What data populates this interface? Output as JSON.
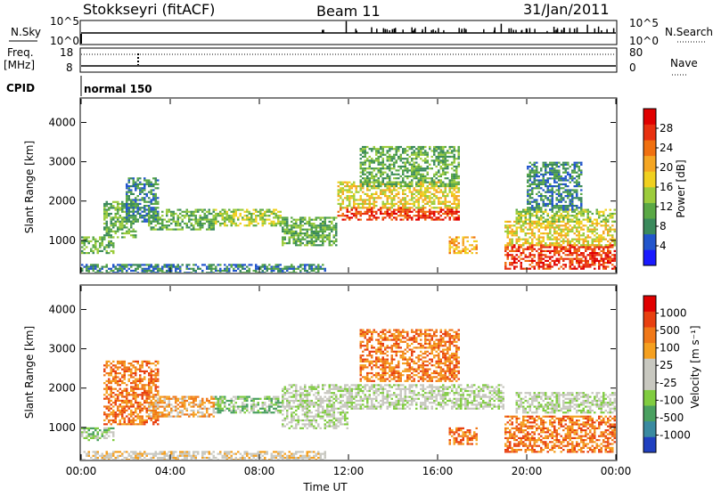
{
  "header": {
    "station": "Stokkseyri (fitACF)",
    "beam": "Beam 11",
    "date": "31/Jan/2011"
  },
  "status_panels": {
    "nsky_label": "N.Sky",
    "nsearch_label": "N.Search",
    "freq_label": "Freq.",
    "freq_unit": "[MHz]",
    "nave_label": "Nave",
    "cpid_label": "CPID",
    "cpid_value": "normal 150",
    "noise_ticks": [
      "10^5",
      "10^0"
    ],
    "freq_ticks": [
      "18",
      "8"
    ],
    "nave_ticks": [
      "80",
      "0"
    ]
  },
  "chart_data": [
    {
      "type": "heatmap",
      "name": "power",
      "ylabel": "Slant Range [km]",
      "xlabel": "Time UT",
      "x_ticks": [
        "00:00",
        "04:00",
        "08:00",
        "12:00",
        "16:00",
        "20:00",
        "00:00"
      ],
      "x_range_hours": [
        0,
        24
      ],
      "y_ticks": [
        1000,
        2000,
        3000,
        4000
      ],
      "ylim": [
        180,
        4600
      ],
      "colorbar": {
        "label": "Power [dB]",
        "ticks": [
          "28",
          "24",
          "20",
          "16",
          "12",
          "8",
          "4"
        ],
        "colors": [
          "#1a1aff",
          "#2255cc",
          "#3b8a5c",
          "#5aa845",
          "#9ccc3c",
          "#f0d020",
          "#f5a623",
          "#f07010",
          "#e83010",
          "#e00000"
        ]
      },
      "regions": [
        {
          "t": [
            0.0,
            1.5
          ],
          "r": [
            700,
            1100
          ],
          "level": 3
        },
        {
          "t": [
            1.0,
            2.5
          ],
          "r": [
            1100,
            2000
          ],
          "level": 3
        },
        {
          "t": [
            2.0,
            3.5
          ],
          "r": [
            1500,
            2600
          ],
          "level": 2
        },
        {
          "t": [
            3.0,
            6.0
          ],
          "r": [
            1300,
            1800
          ],
          "level": 3
        },
        {
          "t": [
            6.0,
            9.0
          ],
          "r": [
            1400,
            1800
          ],
          "level": 4
        },
        {
          "t": [
            9.0,
            11.5
          ],
          "r": [
            900,
            1600
          ],
          "level": 3
        },
        {
          "t": [
            11.5,
            17.0
          ],
          "r": [
            1550,
            1850
          ],
          "level": 8
        },
        {
          "t": [
            11.5,
            17.0
          ],
          "r": [
            1850,
            2500
          ],
          "level": 5
        },
        {
          "t": [
            12.5,
            17.0
          ],
          "r": [
            2400,
            3400
          ],
          "level": 3
        },
        {
          "t": [
            16.5,
            17.8
          ],
          "r": [
            700,
            1100
          ],
          "level": 6
        },
        {
          "t": [
            19.0,
            24.0
          ],
          "r": [
            300,
            900
          ],
          "level": 8
        },
        {
          "t": [
            19.0,
            24.0
          ],
          "r": [
            900,
            1500
          ],
          "level": 5
        },
        {
          "t": [
            19.5,
            24.0
          ],
          "r": [
            1500,
            1800
          ],
          "level": 4
        },
        {
          "t": [
            20.0,
            22.5
          ],
          "r": [
            1800,
            3000
          ],
          "level": 2
        },
        {
          "t": [
            0.0,
            11.0
          ],
          "r": [
            180,
            400
          ],
          "level": 2
        }
      ]
    },
    {
      "type": "heatmap",
      "name": "velocity",
      "ylabel": "Slant Range [km]",
      "xlabel": "Time UT",
      "x_ticks": [
        "00:00",
        "04:00",
        "08:00",
        "12:00",
        "16:00",
        "20:00",
        "00:00"
      ],
      "x_range_hours": [
        0,
        24
      ],
      "y_ticks": [
        1000,
        2000,
        3000,
        4000
      ],
      "ylim": [
        180,
        4600
      ],
      "colorbar": {
        "label": "Velocity [m s⁻¹]",
        "ticks": [
          "1000",
          "500",
          "100",
          "25",
          "-25",
          "-100",
          "-500",
          "-1000"
        ],
        "colors": [
          "#2040c0",
          "#3a8aa0",
          "#4aa060",
          "#80cc40",
          "#c8c8c0",
          "#c8c8c0",
          "#f5a020",
          "#f07818",
          "#e84010",
          "#e00000"
        ]
      },
      "regions": [
        {
          "t": [
            0.0,
            1.5
          ],
          "r": [
            700,
            1000
          ],
          "level": 3
        },
        {
          "t": [
            1.0,
            3.5
          ],
          "r": [
            1100,
            2700
          ],
          "level": 7
        },
        {
          "t": [
            3.0,
            6.0
          ],
          "r": [
            1300,
            1800
          ],
          "level": 6
        },
        {
          "t": [
            6.0,
            9.0
          ],
          "r": [
            1400,
            1800
          ],
          "level": 3
        },
        {
          "t": [
            9.0,
            12.0
          ],
          "r": [
            1000,
            2100
          ],
          "level": 4
        },
        {
          "t": [
            12.0,
            19.0
          ],
          "r": [
            1500,
            2100
          ],
          "level": 4
        },
        {
          "t": [
            12.5,
            17.0
          ],
          "r": [
            2200,
            3500
          ],
          "level": 7
        },
        {
          "t": [
            16.5,
            17.8
          ],
          "r": [
            600,
            1000
          ],
          "level": 7
        },
        {
          "t": [
            19.0,
            24.0
          ],
          "r": [
            400,
            1300
          ],
          "level": 7
        },
        {
          "t": [
            19.5,
            24.0
          ],
          "r": [
            1400,
            1900
          ],
          "level": 4
        },
        {
          "t": [
            0.0,
            11.0
          ],
          "r": [
            180,
            400
          ],
          "level": 5
        }
      ]
    }
  ]
}
